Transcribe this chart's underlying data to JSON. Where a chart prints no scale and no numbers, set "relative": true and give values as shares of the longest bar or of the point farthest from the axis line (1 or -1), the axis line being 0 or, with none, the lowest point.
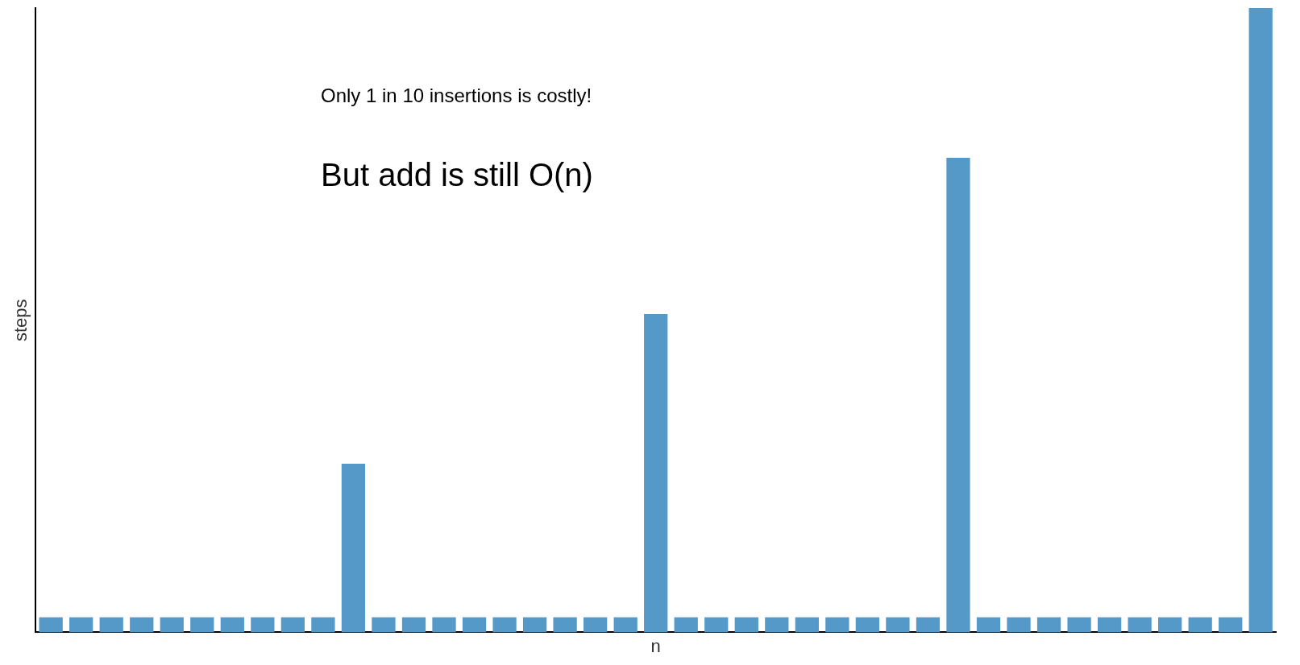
{
  "chart_data": {
    "type": "bar",
    "relative": true,
    "xlabel": "n",
    "ylabel": "steps",
    "categories": [
      null,
      null,
      null,
      null,
      null,
      null,
      null,
      null,
      null,
      null,
      null,
      null,
      null,
      null,
      null,
      null,
      null,
      null,
      null,
      null,
      null,
      null,
      null,
      null,
      null,
      null,
      null,
      null,
      null,
      null,
      null,
      null,
      null,
      null,
      null,
      null,
      null,
      null,
      null,
      null,
      null
    ],
    "values": [
      0.024,
      0.024,
      0.024,
      0.024,
      0.024,
      0.024,
      0.024,
      0.024,
      0.024,
      0.024,
      0.27,
      0.024,
      0.024,
      0.024,
      0.024,
      0.024,
      0.024,
      0.024,
      0.024,
      0.024,
      0.51,
      0.024,
      0.024,
      0.024,
      0.024,
      0.024,
      0.024,
      0.024,
      0.024,
      0.024,
      0.76,
      0.024,
      0.024,
      0.024,
      0.024,
      0.024,
      0.024,
      0.024,
      0.024,
      0.024,
      1
    ],
    "color": "#5599c8",
    "grid": false,
    "legend": false,
    "annotations": [
      "Only 1 in 10 insertions is costly!",
      "But add is still O(n)"
    ]
  }
}
